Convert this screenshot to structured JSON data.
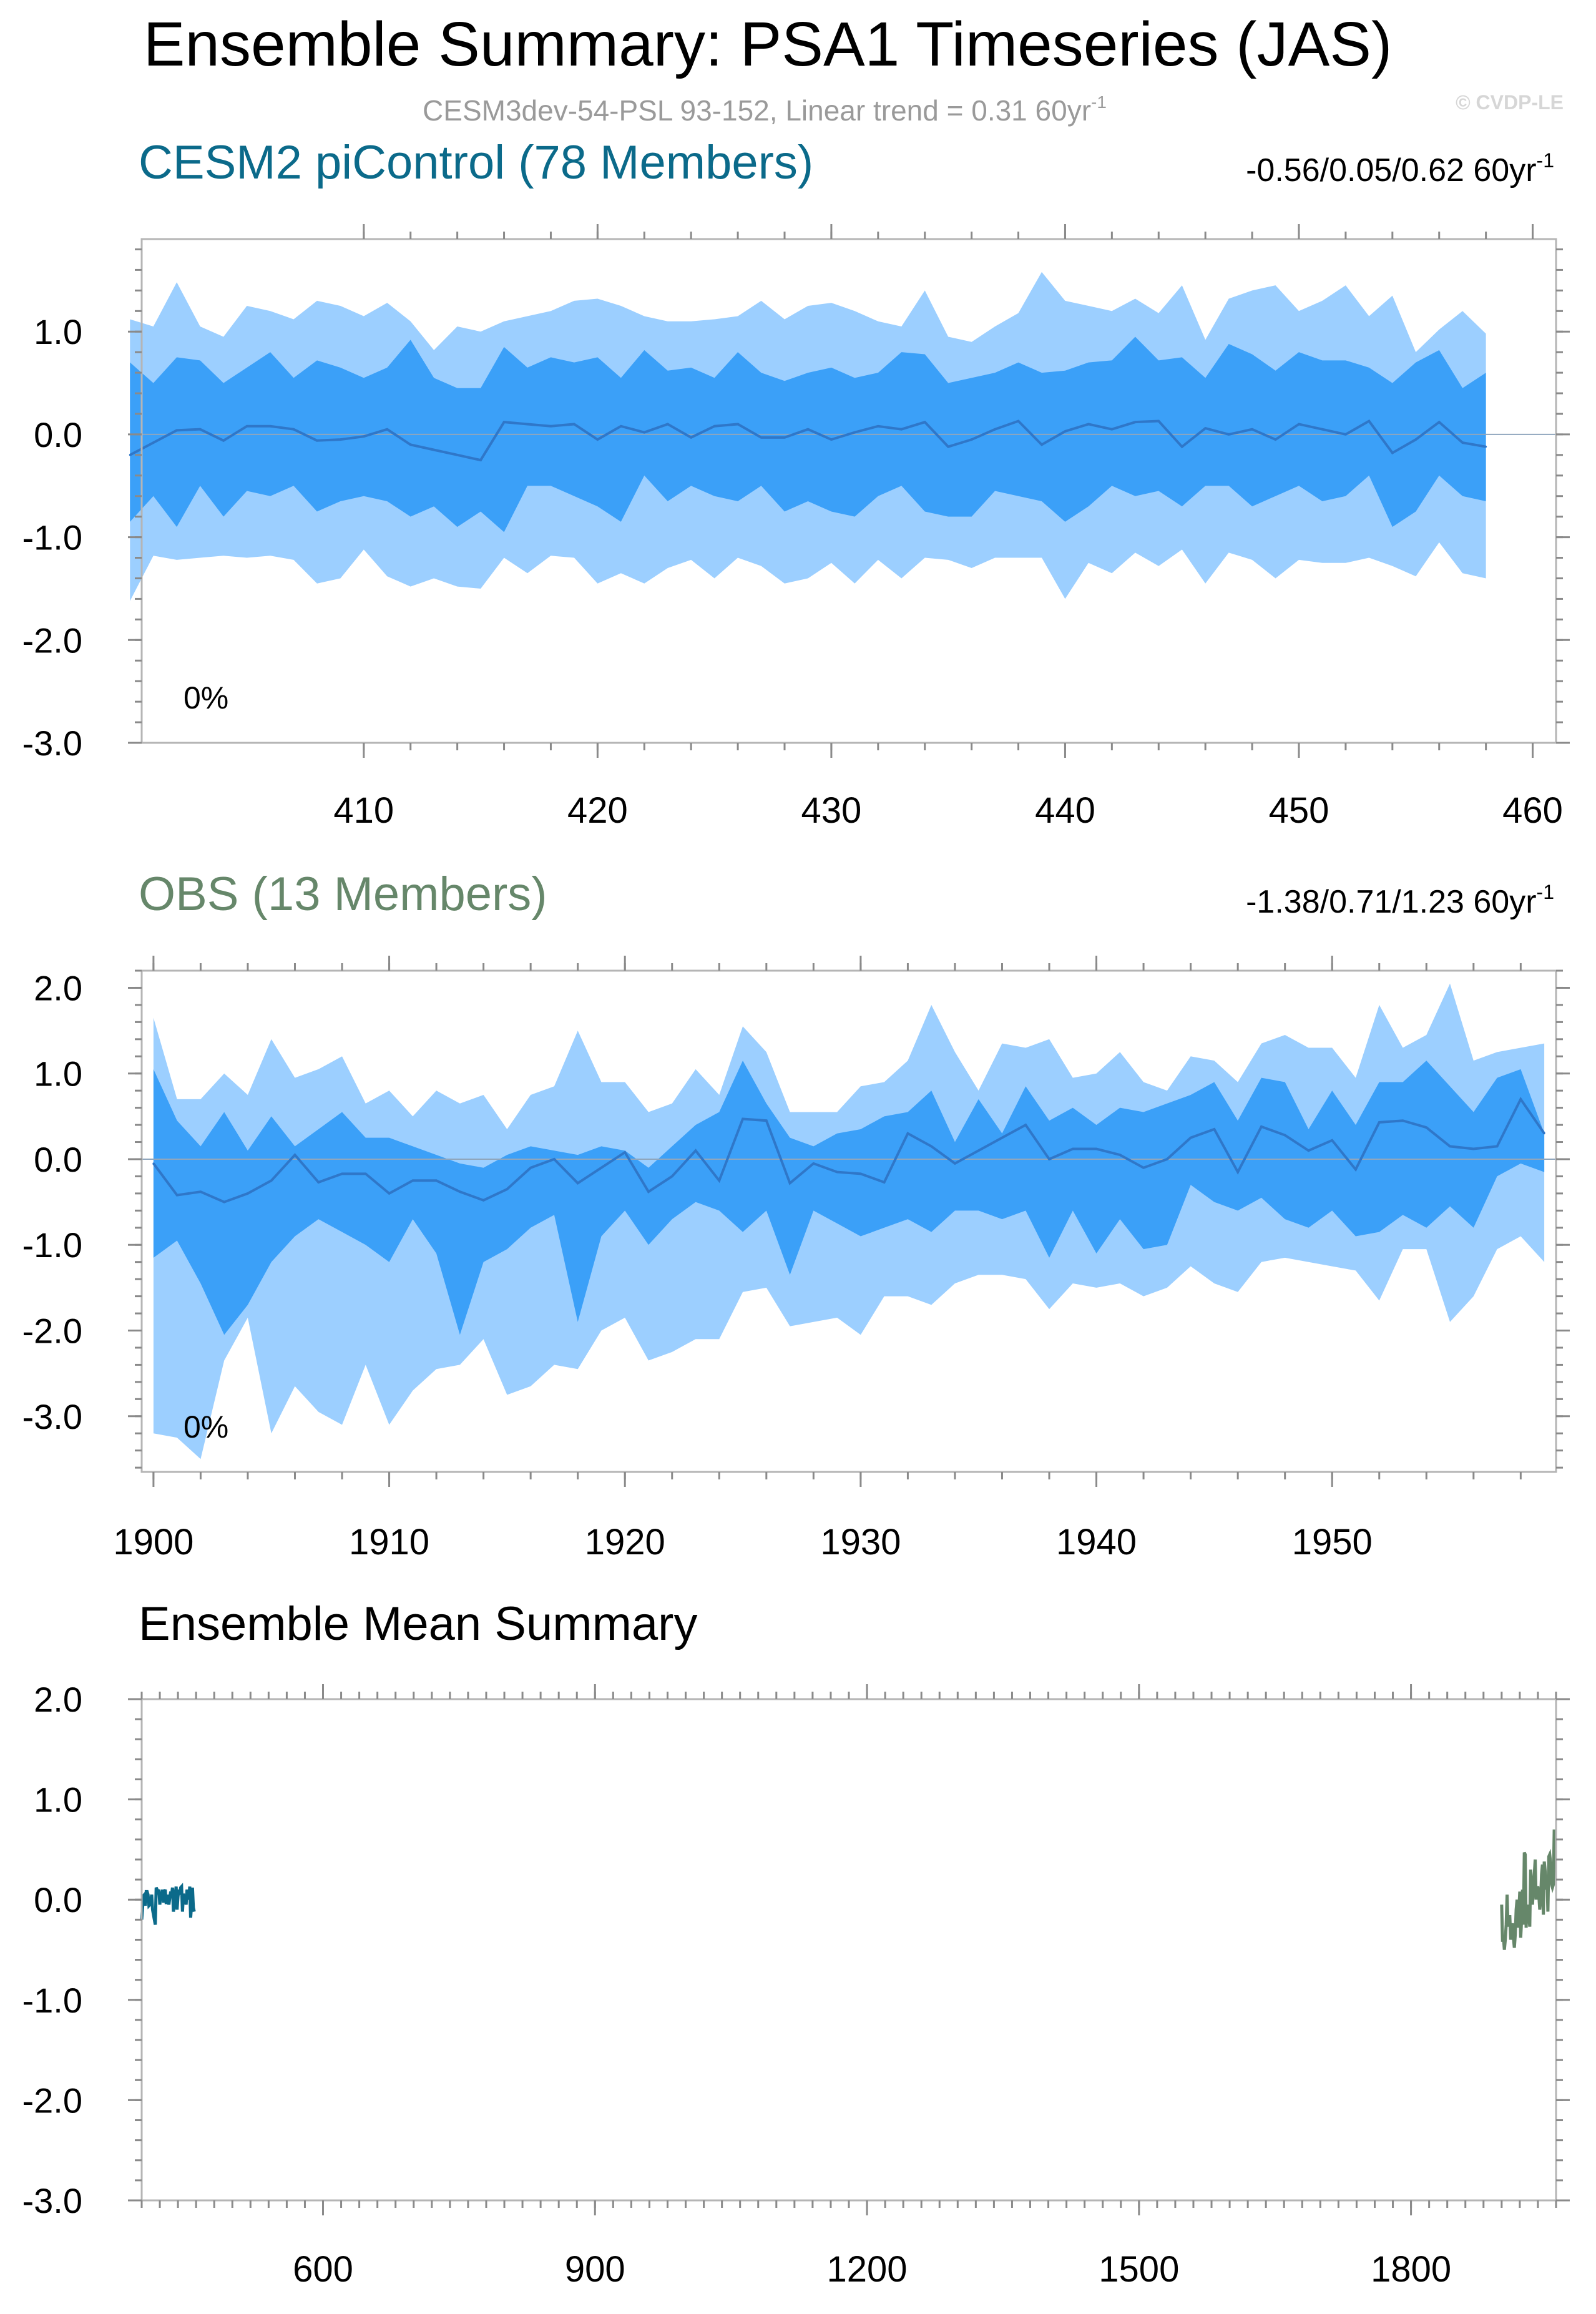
{
  "title": "Ensemble Summary: PSA1 Timeseries (JAS)",
  "subtitle_prefix": "CESM3dev-54-PSL 93-152, Linear trend = 0.31 60yr",
  "subtitle_sup": "-1",
  "watermark": "© CVDP-LE",
  "colors": {
    "outer_band": "#9ccfff",
    "inner_band": "#3ba0f8",
    "mean_line": "#2f77c9",
    "zero_line": "#8fa6bd",
    "picontrol": "#0b6a8a",
    "obs": "#66876a",
    "axis": "#000000"
  },
  "chart_data": [
    {
      "id": "picontrol",
      "type": "area",
      "title": "CESM2 piControl (78 Members)",
      "trend_label": "-0.56/0.05/0.62 60yr",
      "trend_sup": "-1",
      "percent_label": "0%",
      "xlim": [
        400.5,
        461
      ],
      "ylim": [
        -3,
        1.9
      ],
      "x_ticks": [
        410,
        420,
        430,
        440,
        450,
        460
      ],
      "y_ticks": [
        -3,
        -2,
        -1,
        0,
        1
      ],
      "y_tick_labels": [
        "-3.0",
        "-2.0",
        "-1.0",
        "0.0",
        "1.0"
      ],
      "x_start": 400,
      "mean": [
        -0.2,
        -0.08,
        0.04,
        0.05,
        -0.06,
        0.08,
        0.08,
        0.05,
        -0.06,
        -0.05,
        -0.02,
        0.05,
        -0.1,
        -0.15,
        -0.2,
        -0.25,
        0.12,
        0.1,
        0.08,
        0.1,
        -0.05,
        0.08,
        0.02,
        0.1,
        -0.03,
        0.08,
        0.1,
        -0.03,
        -0.03,
        0.05,
        -0.05,
        0.02,
        0.08,
        0.05,
        0.12,
        -0.12,
        -0.05,
        0.05,
        0.13,
        -0.1,
        0.03,
        0.1,
        0.05,
        0.12,
        0.13,
        -0.12,
        0.06,
        0.0,
        0.05,
        -0.05,
        0.1,
        0.05,
        0.0,
        0.13,
        -0.18,
        -0.05,
        0.12,
        -0.08,
        -0.12
      ],
      "p16": [
        -0.85,
        -0.6,
        -0.9,
        -0.5,
        -0.8,
        -0.55,
        -0.6,
        -0.5,
        -0.75,
        -0.65,
        -0.6,
        -0.65,
        -0.8,
        -0.7,
        -0.9,
        -0.75,
        -0.95,
        -0.5,
        -0.5,
        -0.6,
        -0.7,
        -0.85,
        -0.4,
        -0.65,
        -0.5,
        -0.6,
        -0.65,
        -0.5,
        -0.75,
        -0.65,
        -0.75,
        -0.8,
        -0.6,
        -0.5,
        -0.75,
        -0.8,
        -0.8,
        -0.55,
        -0.6,
        -0.65,
        -0.85,
        -0.7,
        -0.5,
        -0.6,
        -0.55,
        -0.7,
        -0.5,
        -0.5,
        -0.7,
        -0.6,
        -0.5,
        -0.65,
        -0.6,
        -0.4,
        -0.9,
        -0.75,
        -0.4,
        -0.6,
        -0.65
      ],
      "p84": [
        0.7,
        0.5,
        0.75,
        0.72,
        0.5,
        0.65,
        0.8,
        0.55,
        0.72,
        0.65,
        0.55,
        0.65,
        0.92,
        0.55,
        0.45,
        0.45,
        0.85,
        0.65,
        0.75,
        0.7,
        0.75,
        0.55,
        0.82,
        0.62,
        0.65,
        0.55,
        0.8,
        0.6,
        0.52,
        0.6,
        0.65,
        0.55,
        0.6,
        0.8,
        0.78,
        0.5,
        0.55,
        0.6,
        0.7,
        0.6,
        0.62,
        0.7,
        0.72,
        0.95,
        0.72,
        0.75,
        0.55,
        0.88,
        0.78,
        0.62,
        0.8,
        0.72,
        0.72,
        0.65,
        0.5,
        0.7,
        0.82,
        0.45,
        0.6
      ],
      "p2": [
        -1.62,
        -1.18,
        -1.22,
        -1.2,
        -1.18,
        -1.2,
        -1.18,
        -1.22,
        -1.45,
        -1.4,
        -1.12,
        -1.38,
        -1.48,
        -1.4,
        -1.48,
        -1.5,
        -1.2,
        -1.35,
        -1.18,
        -1.2,
        -1.45,
        -1.35,
        -1.45,
        -1.3,
        -1.22,
        -1.4,
        -1.2,
        -1.28,
        -1.45,
        -1.4,
        -1.25,
        -1.45,
        -1.22,
        -1.4,
        -1.2,
        -1.22,
        -1.3,
        -1.2,
        -1.2,
        -1.2,
        -1.6,
        -1.25,
        -1.35,
        -1.15,
        -1.28,
        -1.12,
        -1.45,
        -1.15,
        -1.22,
        -1.4,
        -1.22,
        -1.25,
        -1.25,
        -1.2,
        -1.28,
        -1.38,
        -1.05,
        -1.35,
        -1.4
      ],
      "p98": [
        1.12,
        1.05,
        1.48,
        1.05,
        0.95,
        1.25,
        1.2,
        1.12,
        1.3,
        1.25,
        1.15,
        1.28,
        1.1,
        0.82,
        1.05,
        1.0,
        1.1,
        1.15,
        1.2,
        1.3,
        1.32,
        1.25,
        1.15,
        1.1,
        1.1,
        1.12,
        1.15,
        1.3,
        1.12,
        1.25,
        1.28,
        1.2,
        1.1,
        1.05,
        1.4,
        0.95,
        0.9,
        1.05,
        1.18,
        1.58,
        1.3,
        1.25,
        1.2,
        1.32,
        1.18,
        1.45,
        0.92,
        1.32,
        1.4,
        1.45,
        1.2,
        1.3,
        1.45,
        1.15,
        1.35,
        0.8,
        1.02,
        1.2,
        0.98
      ]
    },
    {
      "id": "obs",
      "type": "area",
      "title": "OBS (13 Members)",
      "trend_label": "-1.38/0.71/1.23 60yr",
      "trend_sup": "-1",
      "percent_label": "0%",
      "xlim": [
        1899.5,
        1959.5
      ],
      "ylim": [
        -3.65,
        2.2
      ],
      "x_ticks": [
        1900,
        1910,
        1920,
        1930,
        1940,
        1950
      ],
      "y_ticks": [
        -3,
        -2,
        -1,
        0,
        1,
        2
      ],
      "y_tick_labels": [
        "-3.0",
        "-2.0",
        "-1.0",
        "0.0",
        "1.0",
        "2.0"
      ],
      "x_start": 1900,
      "mean": [
        -0.05,
        -0.42,
        -0.38,
        -0.5,
        -0.4,
        -0.25,
        0.05,
        -0.27,
        -0.17,
        -0.17,
        -0.4,
        -0.25,
        -0.25,
        -0.38,
        -0.48,
        -0.35,
        -0.1,
        0.0,
        -0.28,
        -0.1,
        0.08,
        -0.38,
        -0.2,
        0.1,
        -0.25,
        0.47,
        0.45,
        -0.28,
        -0.05,
        -0.15,
        -0.17,
        -0.27,
        0.3,
        0.15,
        -0.05,
        0.1,
        0.25,
        0.4,
        0.0,
        0.12,
        0.12,
        0.05,
        -0.1,
        0.0,
        0.25,
        0.35,
        -0.15,
        0.38,
        0.28,
        0.1,
        0.22,
        -0.12,
        0.43,
        0.45,
        0.37,
        0.15,
        0.12,
        0.15,
        0.7,
        0.3
      ],
      "p16": [
        -1.15,
        -0.95,
        -1.45,
        -2.05,
        -1.7,
        -1.2,
        -0.9,
        -0.7,
        -0.85,
        -1.0,
        -1.2,
        -0.7,
        -1.1,
        -2.05,
        -1.2,
        -1.05,
        -0.8,
        -0.65,
        -1.9,
        -0.9,
        -0.6,
        -1.0,
        -0.7,
        -0.5,
        -0.6,
        -0.85,
        -0.6,
        -1.35,
        -0.6,
        -0.75,
        -0.9,
        -0.8,
        -0.7,
        -0.85,
        -0.6,
        -0.6,
        -0.7,
        -0.6,
        -1.15,
        -0.6,
        -1.1,
        -0.7,
        -1.05,
        -1.0,
        -0.3,
        -0.5,
        -0.6,
        -0.45,
        -0.7,
        -0.8,
        -0.6,
        -0.9,
        -0.85,
        -0.65,
        -0.8,
        -0.55,
        -0.8,
        -0.2,
        -0.05,
        -0.15
      ],
      "p84": [
        1.05,
        0.45,
        0.15,
        0.55,
        0.1,
        0.5,
        0.15,
        0.35,
        0.55,
        0.25,
        0.25,
        0.15,
        0.05,
        -0.05,
        -0.1,
        0.05,
        0.15,
        0.1,
        0.05,
        0.15,
        0.1,
        -0.1,
        0.15,
        0.4,
        0.55,
        1.15,
        0.65,
        0.25,
        0.15,
        0.3,
        0.35,
        0.5,
        0.55,
        0.8,
        0.2,
        0.7,
        0.3,
        0.85,
        0.45,
        0.6,
        0.4,
        0.6,
        0.55,
        0.65,
        0.75,
        0.9,
        0.45,
        0.95,
        0.9,
        0.35,
        0.8,
        0.4,
        0.9,
        0.9,
        1.15,
        0.85,
        0.55,
        0.95,
        1.05,
        0.3
      ],
      "p2": [
        -3.2,
        -3.25,
        -3.5,
        -2.35,
        -1.85,
        -3.2,
        -2.65,
        -2.95,
        -3.1,
        -2.4,
        -3.1,
        -2.7,
        -2.45,
        -2.4,
        -2.1,
        -2.75,
        -2.65,
        -2.4,
        -2.45,
        -2.0,
        -1.85,
        -2.35,
        -2.25,
        -2.1,
        -2.1,
        -1.55,
        -1.5,
        -1.95,
        -1.9,
        -1.85,
        -2.05,
        -1.6,
        -1.6,
        -1.7,
        -1.45,
        -1.35,
        -1.35,
        -1.4,
        -1.75,
        -1.45,
        -1.5,
        -1.45,
        -1.6,
        -1.5,
        -1.25,
        -1.45,
        -1.55,
        -1.2,
        -1.15,
        -1.2,
        -1.25,
        -1.3,
        -1.65,
        -1.05,
        -1.05,
        -1.9,
        -1.6,
        -1.05,
        -0.9,
        -1.2
      ],
      "p98": [
        1.65,
        0.7,
        0.7,
        1.0,
        0.75,
        1.4,
        0.95,
        1.05,
        1.2,
        0.65,
        0.8,
        0.5,
        0.8,
        0.65,
        0.75,
        0.35,
        0.75,
        0.85,
        1.5,
        0.9,
        0.9,
        0.55,
        0.65,
        1.05,
        0.75,
        1.55,
        1.25,
        0.55,
        0.55,
        0.55,
        0.85,
        0.9,
        1.15,
        1.8,
        1.25,
        0.8,
        1.35,
        1.3,
        1.4,
        0.95,
        1.0,
        1.25,
        0.9,
        0.8,
        1.2,
        1.15,
        0.9,
        1.35,
        1.45,
        1.3,
        1.3,
        0.95,
        1.8,
        1.3,
        1.45,
        2.05,
        1.15,
        1.25,
        1.3,
        1.35
      ]
    },
    {
      "id": "ensemble-mean",
      "type": "line",
      "title": "Ensemble Mean Summary",
      "xlim": [
        400,
        1960
      ],
      "ylim": [
        -3.0,
        2.0
      ],
      "x_ticks": [
        600,
        900,
        1200,
        1500,
        1800
      ],
      "y_ticks": [
        -3,
        -2,
        -1,
        0,
        1,
        2
      ],
      "y_tick_labels": [
        "-3.0",
        "-2.0",
        "-1.0",
        "0.0",
        "1.0",
        "2.0"
      ],
      "series": [
        {
          "name": "CESM2 piControl",
          "ref": "picontrol"
        },
        {
          "name": "OBS",
          "ref": "obs"
        }
      ]
    }
  ]
}
